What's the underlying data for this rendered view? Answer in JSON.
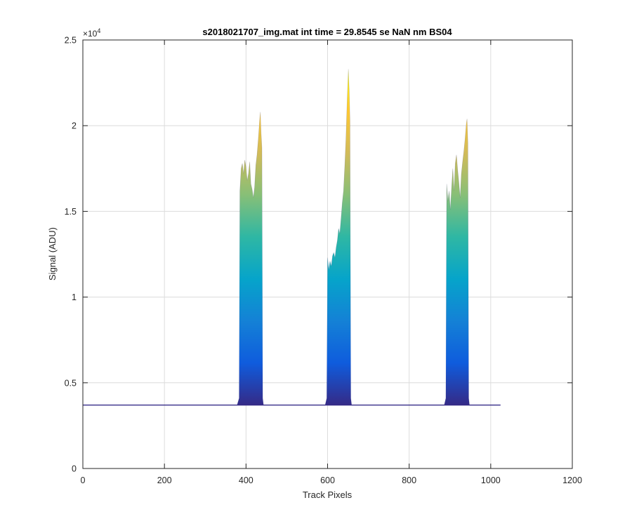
{
  "chart_data": {
    "type": "area",
    "title": "s2018021707_img.mat int time = 29.8545 se  NaN nm BS04",
    "xlabel": "Track Pixels",
    "ylabel": "Signal (ADU)",
    "xlim": [
      0,
      1200
    ],
    "ylim": [
      0,
      25000
    ],
    "xticks": [
      0,
      200,
      400,
      600,
      800,
      1000,
      1200
    ],
    "xtick_labels": [
      "0",
      "200",
      "400",
      "600",
      "800",
      "1000",
      "1200"
    ],
    "yticks": [
      0,
      5000,
      10000,
      15000,
      20000,
      25000
    ],
    "ytick_labels": [
      "0",
      "0.5",
      "1",
      "1.5",
      "2",
      "2.5"
    ],
    "y_multiplier": {
      "base": "×10",
      "exponent": "4"
    },
    "grid": true,
    "baseline_level": 3700,
    "data_x_range": [
      0,
      1024
    ],
    "colormap": [
      "#352a87",
      "#0f5cdd",
      "#1481d6",
      "#06a4ca",
      "#2eb7a4",
      "#87bf77",
      "#d1bb59",
      "#fec832",
      "#f9fb0e"
    ],
    "peaks": [
      {
        "name": "peak 1",
        "outline": [
          [
            378,
            3700
          ],
          [
            383,
            4100
          ],
          [
            385,
            16200
          ],
          [
            388,
            17500
          ],
          [
            391,
            17800
          ],
          [
            394,
            17200
          ],
          [
            397,
            18000
          ],
          [
            400,
            17600
          ],
          [
            403,
            16800
          ],
          [
            406,
            17200
          ],
          [
            409,
            17900
          ],
          [
            412,
            16600
          ],
          [
            415,
            16300
          ],
          [
            418,
            15800
          ],
          [
            421,
            16400
          ],
          [
            424,
            17700
          ],
          [
            427,
            18300
          ],
          [
            430,
            19200
          ],
          [
            433,
            20200
          ],
          [
            435,
            20800
          ],
          [
            437,
            19600
          ],
          [
            439,
            18700
          ],
          [
            441,
            4100
          ],
          [
            443,
            3700
          ]
        ]
      },
      {
        "name": "peak 2",
        "outline": [
          [
            594,
            3700
          ],
          [
            598,
            4100
          ],
          [
            600,
            12300
          ],
          [
            603,
            11600
          ],
          [
            606,
            12100
          ],
          [
            609,
            11800
          ],
          [
            612,
            12400
          ],
          [
            615,
            12600
          ],
          [
            618,
            12300
          ],
          [
            621,
            12900
          ],
          [
            624,
            13300
          ],
          [
            627,
            14000
          ],
          [
            630,
            13700
          ],
          [
            633,
            14600
          ],
          [
            636,
            15500
          ],
          [
            639,
            16200
          ],
          [
            642,
            17600
          ],
          [
            645,
            19200
          ],
          [
            648,
            21500
          ],
          [
            651,
            23300
          ],
          [
            653,
            22100
          ],
          [
            655,
            20300
          ],
          [
            657,
            4100
          ],
          [
            659,
            3700
          ]
        ]
      },
      {
        "name": "peak 3",
        "outline": [
          [
            886,
            3700
          ],
          [
            890,
            4100
          ],
          [
            892,
            16600
          ],
          [
            895,
            15600
          ],
          [
            898,
            16200
          ],
          [
            901,
            15100
          ],
          [
            904,
            16400
          ],
          [
            907,
            17500
          ],
          [
            910,
            16200
          ],
          [
            913,
            17800
          ],
          [
            916,
            18300
          ],
          [
            919,
            17400
          ],
          [
            922,
            16700
          ],
          [
            925,
            15800
          ],
          [
            928,
            17200
          ],
          [
            931,
            17900
          ],
          [
            934,
            18500
          ],
          [
            937,
            19200
          ],
          [
            940,
            20100
          ],
          [
            942,
            20400
          ],
          [
            944,
            19000
          ],
          [
            946,
            4100
          ],
          [
            948,
            3700
          ]
        ]
      }
    ]
  }
}
